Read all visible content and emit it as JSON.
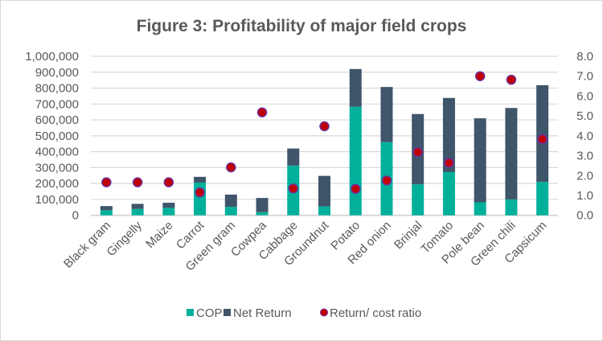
{
  "chart_data": {
    "type": "bar",
    "subtype": "stacked-bar-with-scatter-secondary-axis",
    "title": "Figure 3: Profitability of major field crops",
    "xlabel": "",
    "ylabel": "",
    "y2label": "",
    "categories": [
      "Black gram",
      "Gingelly",
      "Maize",
      "Carrot",
      "Green gram",
      "Cowpea",
      "Cabbage",
      "Groundnut",
      "Potato",
      "Red onion",
      "Brinjal",
      "Tomato",
      "Pole bean",
      "Green chili",
      "Capsicum"
    ],
    "series": [
      {
        "name": "COP",
        "type": "bar",
        "axis": "primary",
        "color": "#00b09b",
        "values": [
          32000,
          40000,
          47000,
          206000,
          53000,
          20000,
          313000,
          56000,
          683000,
          460000,
          195000,
          272000,
          82000,
          100000,
          210000
        ]
      },
      {
        "name": "Net Return",
        "type": "bar",
        "axis": "primary",
        "color": "#3f556a",
        "values": [
          26000,
          32000,
          32000,
          36000,
          77000,
          89000,
          107000,
          192000,
          237000,
          347000,
          442000,
          466000,
          528000,
          575000,
          608000
        ]
      },
      {
        "name": "Return/ cost ratio",
        "type": "scatter",
        "axis": "secondary",
        "color": "#c00000",
        "values": [
          1.66,
          1.66,
          1.66,
          1.15,
          2.41,
          5.18,
          1.35,
          4.48,
          1.33,
          1.75,
          3.18,
          2.64,
          7.0,
          6.82,
          3.83
        ]
      }
    ],
    "ylim": [
      0,
      1000000
    ],
    "y_ticks": [
      "0",
      "100,000",
      "200,000",
      "300,000",
      "400,000",
      "500,000",
      "600,000",
      "700,000",
      "800,000",
      "900,000",
      "1,000,000"
    ],
    "y2lim": [
      0,
      8
    ],
    "y2_ticks": [
      "0.0",
      "1.0",
      "2.0",
      "3.0",
      "4.0",
      "5.0",
      "6.0",
      "7.0",
      "8.0"
    ],
    "grid": true,
    "legend_position": "bottom",
    "legend": [
      "COP",
      "Net Return",
      "Return/ cost ratio"
    ]
  }
}
